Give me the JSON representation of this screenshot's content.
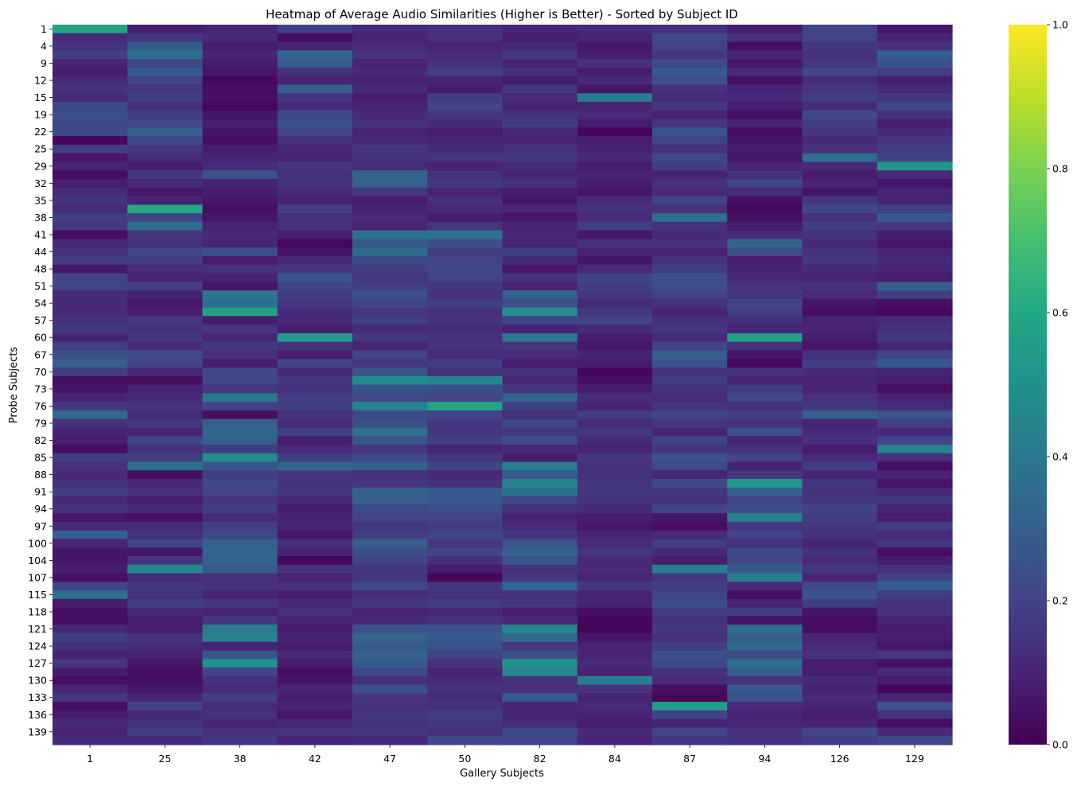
{
  "chart_data": {
    "type": "heatmap",
    "title": "Heatmap of Average Audio Similarities (Higher is Better) - Sorted by Subject ID",
    "xlabel": "Gallery Subjects",
    "ylabel": "Probe Subjects",
    "x_tick_labels": [
      "1",
      "25",
      "38",
      "42",
      "47",
      "50",
      "82",
      "84",
      "87",
      "94",
      "126",
      "129"
    ],
    "y_tick_labels": [
      "1",
      "4",
      "9",
      "12",
      "15",
      "19",
      "22",
      "25",
      "29",
      "32",
      "35",
      "38",
      "41",
      "44",
      "48",
      "51",
      "54",
      "57",
      "60",
      "67",
      "70",
      "73",
      "76",
      "79",
      "82",
      "85",
      "88",
      "91",
      "94",
      "97",
      "100",
      "104",
      "107",
      "115",
      "118",
      "121",
      "124",
      "127",
      "130",
      "133",
      "136",
      "139"
    ],
    "n_rows": 84,
    "colormap": "viridis",
    "colorbar": {
      "range": [
        0.0,
        1.0
      ],
      "ticks": [
        "0.0",
        "0.2",
        "0.4",
        "0.6",
        "0.8",
        "1.0"
      ]
    },
    "values": [
      [
        0.58,
        0.08,
        0.1,
        0.18,
        0.12,
        0.14,
        0.1,
        0.12,
        0.14,
        0.08,
        0.2,
        0.06
      ],
      [
        0.12,
        0.16,
        0.12,
        0.04,
        0.1,
        0.14,
        0.08,
        0.1,
        0.22,
        0.14,
        0.2,
        0.1
      ],
      [
        0.14,
        0.28,
        0.08,
        0.1,
        0.12,
        0.1,
        0.12,
        0.06,
        0.2,
        0.04,
        0.16,
        0.14
      ],
      [
        0.18,
        0.36,
        0.1,
        0.32,
        0.14,
        0.12,
        0.16,
        0.08,
        0.16,
        0.1,
        0.14,
        0.3
      ],
      [
        0.1,
        0.22,
        0.08,
        0.28,
        0.1,
        0.14,
        0.1,
        0.14,
        0.22,
        0.06,
        0.16,
        0.26
      ],
      [
        0.08,
        0.28,
        0.06,
        0.14,
        0.12,
        0.18,
        0.14,
        0.08,
        0.28,
        0.12,
        0.2,
        0.18
      ],
      [
        0.12,
        0.2,
        0.02,
        0.1,
        0.1,
        0.1,
        0.08,
        0.12,
        0.24,
        0.04,
        0.12,
        0.08
      ],
      [
        0.14,
        0.16,
        0.04,
        0.3,
        0.12,
        0.08,
        0.16,
        0.06,
        0.14,
        0.1,
        0.16,
        0.12
      ],
      [
        0.12,
        0.18,
        0.04,
        0.16,
        0.08,
        0.18,
        0.12,
        0.42,
        0.12,
        0.12,
        0.18,
        0.16
      ],
      [
        0.22,
        0.14,
        0.02,
        0.12,
        0.1,
        0.2,
        0.1,
        0.1,
        0.16,
        0.08,
        0.12,
        0.22
      ],
      [
        0.24,
        0.18,
        0.06,
        0.22,
        0.12,
        0.16,
        0.14,
        0.12,
        0.1,
        0.04,
        0.22,
        0.14
      ],
      [
        0.22,
        0.22,
        0.08,
        0.24,
        0.14,
        0.12,
        0.18,
        0.08,
        0.16,
        0.1,
        0.18,
        0.08
      ],
      [
        0.22,
        0.3,
        0.06,
        0.2,
        0.1,
        0.08,
        0.12,
        0.02,
        0.26,
        0.04,
        0.16,
        0.12
      ],
      [
        0.02,
        0.22,
        0.04,
        0.14,
        0.12,
        0.1,
        0.1,
        0.08,
        0.2,
        0.06,
        0.12,
        0.16
      ],
      [
        0.18,
        0.16,
        0.08,
        0.12,
        0.16,
        0.12,
        0.14,
        0.1,
        0.14,
        0.08,
        0.14,
        0.18
      ],
      [
        0.06,
        0.12,
        0.1,
        0.1,
        0.14,
        0.16,
        0.16,
        0.12,
        0.22,
        0.06,
        0.36,
        0.2
      ],
      [
        0.1,
        0.08,
        0.12,
        0.16,
        0.12,
        0.1,
        0.12,
        0.08,
        0.18,
        0.1,
        0.12,
        0.52
      ],
      [
        0.04,
        0.16,
        0.26,
        0.14,
        0.32,
        0.14,
        0.1,
        0.1,
        0.1,
        0.14,
        0.08,
        0.12
      ],
      [
        0.08,
        0.12,
        0.1,
        0.14,
        0.3,
        0.16,
        0.14,
        0.08,
        0.14,
        0.2,
        0.1,
        0.06
      ],
      [
        0.12,
        0.06,
        0.08,
        0.12,
        0.16,
        0.1,
        0.08,
        0.06,
        0.12,
        0.12,
        0.06,
        0.1
      ],
      [
        0.14,
        0.1,
        0.06,
        0.1,
        0.08,
        0.14,
        0.06,
        0.12,
        0.2,
        0.04,
        0.16,
        0.1
      ],
      [
        0.12,
        0.6,
        0.04,
        0.18,
        0.1,
        0.12,
        0.1,
        0.14,
        0.14,
        0.02,
        0.22,
        0.18
      ],
      [
        0.18,
        0.2,
        0.06,
        0.14,
        0.12,
        0.08,
        0.06,
        0.12,
        0.36,
        0.04,
        0.14,
        0.28
      ],
      [
        0.16,
        0.36,
        0.1,
        0.14,
        0.1,
        0.16,
        0.1,
        0.18,
        0.14,
        0.08,
        0.18,
        0.16
      ],
      [
        0.04,
        0.16,
        0.12,
        0.08,
        0.36,
        0.38,
        0.12,
        0.06,
        0.12,
        0.12,
        0.14,
        0.08
      ],
      [
        0.12,
        0.14,
        0.1,
        0.02,
        0.28,
        0.24,
        0.1,
        0.14,
        0.14,
        0.32,
        0.12,
        0.06
      ],
      [
        0.14,
        0.2,
        0.24,
        0.06,
        0.34,
        0.18,
        0.18,
        0.1,
        0.1,
        0.24,
        0.14,
        0.1
      ],
      [
        0.18,
        0.18,
        0.08,
        0.12,
        0.22,
        0.2,
        0.12,
        0.06,
        0.14,
        0.08,
        0.16,
        0.12
      ],
      [
        0.06,
        0.12,
        0.14,
        0.16,
        0.18,
        0.22,
        0.06,
        0.12,
        0.18,
        0.1,
        0.12,
        0.1
      ],
      [
        0.2,
        0.1,
        0.1,
        0.26,
        0.16,
        0.2,
        0.14,
        0.2,
        0.24,
        0.12,
        0.1,
        0.08
      ],
      [
        0.2,
        0.18,
        0.06,
        0.2,
        0.18,
        0.16,
        0.1,
        0.18,
        0.24,
        0.14,
        0.14,
        0.3
      ],
      [
        0.12,
        0.1,
        0.4,
        0.18,
        0.24,
        0.14,
        0.32,
        0.16,
        0.2,
        0.16,
        0.12,
        0.18
      ],
      [
        0.12,
        0.06,
        0.36,
        0.16,
        0.2,
        0.18,
        0.24,
        0.12,
        0.14,
        0.2,
        0.06,
        0.04
      ],
      [
        0.12,
        0.08,
        0.56,
        0.12,
        0.16,
        0.14,
        0.48,
        0.16,
        0.1,
        0.18,
        0.04,
        0.02
      ],
      [
        0.14,
        0.16,
        0.08,
        0.12,
        0.18,
        0.14,
        0.2,
        0.2,
        0.14,
        0.14,
        0.1,
        0.12
      ],
      [
        0.16,
        0.14,
        0.16,
        0.08,
        0.12,
        0.12,
        0.1,
        0.12,
        0.16,
        0.1,
        0.1,
        0.14
      ],
      [
        0.1,
        0.16,
        0.1,
        0.54,
        0.16,
        0.14,
        0.4,
        0.08,
        0.12,
        0.56,
        0.08,
        0.16
      ],
      [
        0.18,
        0.12,
        0.16,
        0.14,
        0.1,
        0.14,
        0.16,
        0.06,
        0.2,
        0.14,
        0.06,
        0.1
      ],
      [
        0.24,
        0.22,
        0.14,
        0.08,
        0.2,
        0.12,
        0.12,
        0.1,
        0.3,
        0.06,
        0.14,
        0.2
      ],
      [
        0.3,
        0.2,
        0.08,
        0.2,
        0.16,
        0.18,
        0.08,
        0.08,
        0.26,
        0.02,
        0.18,
        0.28
      ],
      [
        0.18,
        0.12,
        0.22,
        0.12,
        0.26,
        0.14,
        0.14,
        0.02,
        0.14,
        0.14,
        0.12,
        0.1
      ],
      [
        0.04,
        0.04,
        0.22,
        0.16,
        0.48,
        0.46,
        0.12,
        0.04,
        0.18,
        0.1,
        0.1,
        0.08
      ],
      [
        0.06,
        0.1,
        0.16,
        0.14,
        0.26,
        0.24,
        0.16,
        0.08,
        0.14,
        0.18,
        0.1,
        0.04
      ],
      [
        0.1,
        0.12,
        0.4,
        0.18,
        0.22,
        0.22,
        0.32,
        0.12,
        0.12,
        0.22,
        0.14,
        0.1
      ],
      [
        0.16,
        0.14,
        0.2,
        0.18,
        0.44,
        0.58,
        0.18,
        0.1,
        0.16,
        0.14,
        0.16,
        0.12
      ],
      [
        0.34,
        0.12,
        0.04,
        0.14,
        0.22,
        0.2,
        0.14,
        0.18,
        0.2,
        0.18,
        0.3,
        0.26
      ],
      [
        0.14,
        0.16,
        0.3,
        0.12,
        0.24,
        0.16,
        0.22,
        0.12,
        0.16,
        0.14,
        0.1,
        0.18
      ],
      [
        0.1,
        0.1,
        0.32,
        0.18,
        0.36,
        0.16,
        0.16,
        0.16,
        0.1,
        0.24,
        0.12,
        0.12
      ],
      [
        0.08,
        0.2,
        0.3,
        0.08,
        0.26,
        0.18,
        0.24,
        0.12,
        0.2,
        0.1,
        0.14,
        0.2
      ],
      [
        0.04,
        0.14,
        0.18,
        0.12,
        0.16,
        0.1,
        0.12,
        0.1,
        0.16,
        0.14,
        0.08,
        0.44
      ],
      [
        0.18,
        0.18,
        0.48,
        0.18,
        0.22,
        0.16,
        0.08,
        0.16,
        0.26,
        0.2,
        0.12,
        0.14
      ],
      [
        0.14,
        0.36,
        0.26,
        0.32,
        0.3,
        0.2,
        0.42,
        0.14,
        0.22,
        0.1,
        0.18,
        0.04
      ],
      [
        0.12,
        0.04,
        0.18,
        0.16,
        0.14,
        0.12,
        0.28,
        0.14,
        0.1,
        0.16,
        0.1,
        0.1
      ],
      [
        0.14,
        0.12,
        0.22,
        0.14,
        0.16,
        0.14,
        0.46,
        0.16,
        0.22,
        0.52,
        0.16,
        0.06
      ],
      [
        0.18,
        0.14,
        0.2,
        0.16,
        0.3,
        0.28,
        0.38,
        0.16,
        0.16,
        0.3,
        0.14,
        0.12
      ],
      [
        0.12,
        0.08,
        0.16,
        0.12,
        0.3,
        0.28,
        0.2,
        0.14,
        0.14,
        0.2,
        0.16,
        0.16
      ],
      [
        0.14,
        0.12,
        0.18,
        0.08,
        0.22,
        0.24,
        0.14,
        0.12,
        0.2,
        0.24,
        0.2,
        0.1
      ],
      [
        0.06,
        0.04,
        0.12,
        0.1,
        0.2,
        0.2,
        0.1,
        0.08,
        0.06,
        0.44,
        0.18,
        0.08
      ],
      [
        0.12,
        0.12,
        0.18,
        0.1,
        0.16,
        0.18,
        0.12,
        0.06,
        0.04,
        0.16,
        0.16,
        0.18
      ],
      [
        0.3,
        0.14,
        0.22,
        0.06,
        0.18,
        0.2,
        0.16,
        0.1,
        0.12,
        0.2,
        0.14,
        0.12
      ],
      [
        0.1,
        0.2,
        0.3,
        0.14,
        0.3,
        0.16,
        0.26,
        0.12,
        0.18,
        0.14,
        0.1,
        0.16
      ],
      [
        0.06,
        0.06,
        0.32,
        0.1,
        0.24,
        0.2,
        0.3,
        0.16,
        0.12,
        0.22,
        0.14,
        0.04
      ],
      [
        0.06,
        0.16,
        0.3,
        0.02,
        0.2,
        0.14,
        0.26,
        0.12,
        0.08,
        0.22,
        0.12,
        0.08
      ],
      [
        0.08,
        0.46,
        0.28,
        0.14,
        0.16,
        0.08,
        0.14,
        0.12,
        0.42,
        0.28,
        0.16,
        0.14
      ],
      [
        0.04,
        0.12,
        0.14,
        0.1,
        0.16,
        0.02,
        0.16,
        0.1,
        0.16,
        0.42,
        0.1,
        0.2
      ],
      [
        0.2,
        0.16,
        0.14,
        0.14,
        0.22,
        0.16,
        0.32,
        0.16,
        0.18,
        0.12,
        0.22,
        0.3
      ],
      [
        0.36,
        0.14,
        0.1,
        0.08,
        0.12,
        0.14,
        0.14,
        0.1,
        0.2,
        0.04,
        0.26,
        0.18
      ],
      [
        0.08,
        0.18,
        0.16,
        0.12,
        0.16,
        0.18,
        0.16,
        0.1,
        0.24,
        0.1,
        0.18,
        0.14
      ],
      [
        0.04,
        0.12,
        0.1,
        0.14,
        0.1,
        0.12,
        0.08,
        0.04,
        0.18,
        0.18,
        0.06,
        0.14
      ],
      [
        0.04,
        0.08,
        0.16,
        0.1,
        0.12,
        0.14,
        0.12,
        0.02,
        0.14,
        0.06,
        0.04,
        0.1
      ],
      [
        0.12,
        0.08,
        0.42,
        0.08,
        0.26,
        0.26,
        0.46,
        0.02,
        0.16,
        0.36,
        0.04,
        0.08
      ],
      [
        0.18,
        0.14,
        0.44,
        0.1,
        0.32,
        0.28,
        0.34,
        0.06,
        0.14,
        0.3,
        0.1,
        0.08
      ],
      [
        0.14,
        0.12,
        0.1,
        0.08,
        0.28,
        0.26,
        0.16,
        0.1,
        0.18,
        0.34,
        0.12,
        0.06
      ],
      [
        0.1,
        0.1,
        0.26,
        0.12,
        0.3,
        0.2,
        0.24,
        0.1,
        0.24,
        0.22,
        0.14,
        0.16
      ],
      [
        0.16,
        0.06,
        0.5,
        0.08,
        0.28,
        0.14,
        0.5,
        0.12,
        0.22,
        0.36,
        0.08,
        0.04
      ],
      [
        0.08,
        0.04,
        0.2,
        0.04,
        0.22,
        0.1,
        0.46,
        0.1,
        0.14,
        0.3,
        0.08,
        0.12
      ],
      [
        0.04,
        0.04,
        0.14,
        0.06,
        0.14,
        0.12,
        0.14,
        0.42,
        0.12,
        0.14,
        0.12,
        0.08
      ],
      [
        0.1,
        0.06,
        0.12,
        0.1,
        0.24,
        0.14,
        0.14,
        0.14,
        0.04,
        0.28,
        0.1,
        0.02
      ],
      [
        0.16,
        0.1,
        0.18,
        0.08,
        0.16,
        0.12,
        0.28,
        0.1,
        0.02,
        0.26,
        0.12,
        0.1
      ],
      [
        0.04,
        0.2,
        0.12,
        0.1,
        0.14,
        0.14,
        0.1,
        0.12,
        0.56,
        0.12,
        0.1,
        0.26
      ],
      [
        0.08,
        0.12,
        0.14,
        0.06,
        0.16,
        0.18,
        0.1,
        0.1,
        0.2,
        0.1,
        0.08,
        0.14
      ],
      [
        0.12,
        0.14,
        0.1,
        0.12,
        0.14,
        0.16,
        0.12,
        0.08,
        0.1,
        0.12,
        0.1,
        0.04
      ],
      [
        0.1,
        0.18,
        0.14,
        0.16,
        0.16,
        0.14,
        0.22,
        0.12,
        0.2,
        0.14,
        0.2,
        0.12
      ],
      [
        0.12,
        0.12,
        0.16,
        0.1,
        0.12,
        0.22,
        0.2,
        0.1,
        0.16,
        0.14,
        0.18,
        0.22
      ]
    ]
  }
}
